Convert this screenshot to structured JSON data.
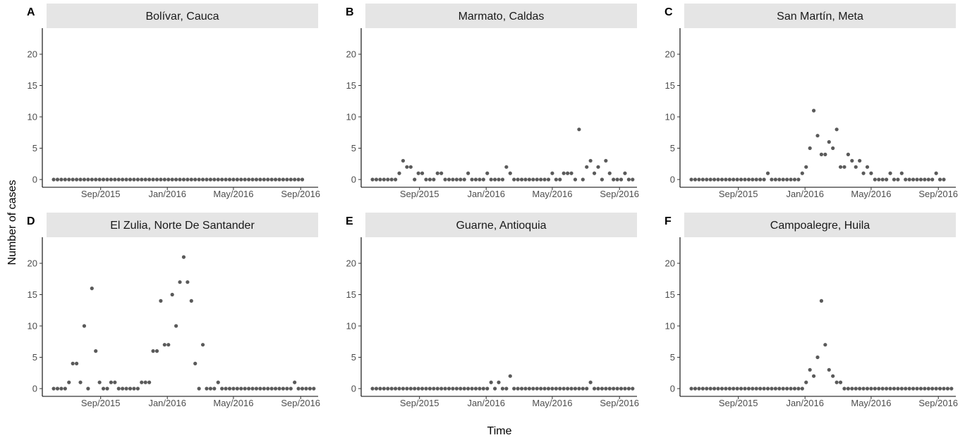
{
  "axes": {
    "xlabel": "Time",
    "ylabel": "Number of cases"
  },
  "point_color": "#5a5a5a",
  "strip_color": "#e5e5e5",
  "chart_data": [
    {
      "type": "scatter",
      "panel": "A",
      "title": "Bolívar, Cauca",
      "x_start": "2015-06-07",
      "x_step_days": 7,
      "x_ticks": [
        "Sep/2015",
        "Jan/2016",
        "May/2016",
        "Sep/2016"
      ],
      "ylim": [
        -1,
        24
      ],
      "y_ticks": [
        0,
        5,
        10,
        15,
        20
      ],
      "values": [
        0,
        0,
        0,
        0,
        0,
        0,
        0,
        0,
        0,
        0,
        0,
        0,
        0,
        0,
        0,
        0,
        0,
        0,
        0,
        0,
        0,
        0,
        0,
        0,
        0,
        0,
        0,
        0,
        0,
        0,
        0,
        0,
        0,
        0,
        0,
        0,
        0,
        0,
        0,
        0,
        0,
        0,
        0,
        0,
        0,
        0,
        0,
        0,
        0,
        0,
        0,
        0,
        0,
        0,
        0,
        0,
        0,
        0,
        0,
        0,
        0,
        0,
        0,
        0,
        0,
        0
      ]
    },
    {
      "type": "scatter",
      "panel": "B",
      "title": "Marmato, Caldas",
      "x_start": "2015-06-07",
      "x_step_days": 7,
      "x_ticks": [
        "Sep/2015",
        "Jan/2016",
        "May/2016",
        "Sep/2016"
      ],
      "ylim": [
        -1,
        24
      ],
      "y_ticks": [
        0,
        5,
        10,
        15,
        20
      ],
      "values": [
        0,
        0,
        0,
        0,
        0,
        0,
        0,
        1,
        3,
        2,
        2,
        0,
        1,
        1,
        0,
        0,
        0,
        1,
        1,
        0,
        0,
        0,
        0,
        0,
        0,
        1,
        0,
        0,
        0,
        0,
        1,
        0,
        0,
        0,
        0,
        2,
        1,
        0,
        0,
        0,
        0,
        0,
        0,
        0,
        0,
        0,
        0,
        1,
        0,
        0,
        1,
        1,
        1,
        0,
        8,
        0,
        2,
        3,
        1,
        2,
        0,
        3,
        1,
        0,
        0,
        0,
        1,
        0,
        0
      ]
    },
    {
      "type": "scatter",
      "panel": "C",
      "title": "San Martín, Meta",
      "x_start": "2015-06-07",
      "x_step_days": 7,
      "x_ticks": [
        "Sep/2015",
        "Jan/2016",
        "May/2016",
        "Sep/2016"
      ],
      "ylim": [
        -1,
        24
      ],
      "y_ticks": [
        0,
        5,
        10,
        15,
        20
      ],
      "values": [
        0,
        0,
        0,
        0,
        0,
        0,
        0,
        0,
        0,
        0,
        0,
        0,
        0,
        0,
        0,
        0,
        0,
        0,
        0,
        0,
        1,
        0,
        0,
        0,
        0,
        0,
        0,
        0,
        0,
        1,
        2,
        5,
        11,
        7,
        4,
        4,
        6,
        5,
        8,
        2,
        2,
        4,
        3,
        2,
        3,
        1,
        2,
        1,
        0,
        0,
        0,
        0,
        1,
        0,
        0,
        1,
        0,
        0,
        0,
        0,
        0,
        0,
        0,
        0,
        1,
        0,
        0
      ]
    },
    {
      "type": "scatter",
      "panel": "D",
      "title": "El Zulia, Norte De Santander",
      "x_start": "2015-06-07",
      "x_step_days": 7,
      "x_ticks": [
        "Sep/2015",
        "Jan/2016",
        "May/2016",
        "Sep/2016"
      ],
      "ylim": [
        -1,
        24
      ],
      "y_ticks": [
        0,
        5,
        10,
        15,
        20
      ],
      "values": [
        0,
        0,
        0,
        0,
        1,
        4,
        4,
        1,
        10,
        0,
        16,
        6,
        1,
        0,
        0,
        1,
        1,
        0,
        0,
        0,
        0,
        0,
        0,
        1,
        1,
        1,
        6,
        6,
        14,
        7,
        7,
        15,
        10,
        17,
        21,
        17,
        14,
        4,
        0,
        7,
        0,
        0,
        0,
        1,
        0,
        0,
        0,
        0,
        0,
        0,
        0,
        0,
        0,
        0,
        0,
        0,
        0,
        0,
        0,
        0,
        0,
        0,
        0,
        1,
        0,
        0,
        0,
        0,
        0,
        0,
        0,
        0,
        0
      ]
    },
    {
      "type": "scatter",
      "panel": "E",
      "title": "Guarne, Antioquia",
      "x_start": "2015-06-07",
      "x_step_days": 7,
      "x_ticks": [
        "Sep/2015",
        "Jan/2016",
        "May/2016",
        "Sep/2016"
      ],
      "ylim": [
        -1,
        24
      ],
      "y_ticks": [
        0,
        5,
        10,
        15,
        20
      ],
      "values": [
        0,
        0,
        0,
        0,
        0,
        0,
        0,
        0,
        0,
        0,
        0,
        0,
        0,
        0,
        0,
        0,
        0,
        0,
        0,
        0,
        0,
        0,
        0,
        0,
        0,
        0,
        0,
        0,
        0,
        0,
        0,
        1,
        0,
        1,
        0,
        0,
        2,
        0,
        0,
        0,
        0,
        0,
        0,
        0,
        0,
        0,
        0,
        0,
        0,
        0,
        0,
        0,
        0,
        0,
        0,
        0,
        0,
        1,
        0,
        0,
        0,
        0,
        0,
        0,
        0,
        0,
        0,
        0,
        0
      ]
    },
    {
      "type": "scatter",
      "panel": "F",
      "title": "Campoalegre, Huila",
      "x_start": "2015-06-07",
      "x_step_days": 7,
      "x_ticks": [
        "Sep/2015",
        "Jan/2016",
        "May/2016",
        "Sep/2016"
      ],
      "ylim": [
        -1,
        24
      ],
      "y_ticks": [
        0,
        5,
        10,
        15,
        20
      ],
      "values": [
        0,
        0,
        0,
        0,
        0,
        0,
        0,
        0,
        0,
        0,
        0,
        0,
        0,
        0,
        0,
        0,
        0,
        0,
        0,
        0,
        0,
        0,
        0,
        0,
        0,
        0,
        0,
        0,
        0,
        0,
        1,
        3,
        2,
        5,
        14,
        7,
        3,
        2,
        1,
        1,
        0,
        0,
        0,
        0,
        0,
        0,
        0,
        0,
        0,
        0,
        0,
        0,
        0,
        0,
        0,
        0,
        0,
        0,
        0,
        0,
        0,
        0,
        0,
        0,
        0,
        0,
        0,
        0,
        0,
        0
      ]
    }
  ]
}
